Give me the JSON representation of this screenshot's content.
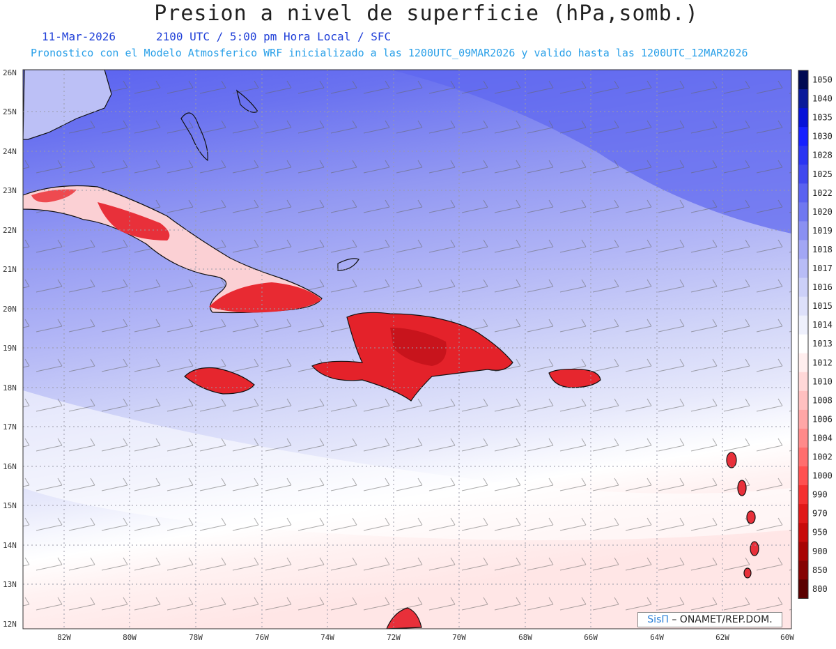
{
  "header": {
    "title": "Presion a nivel de superficie (hPa,somb.)",
    "date": "11-Mar-2026",
    "valid": "2100 UTC / 5:00 pm Hora Local / SFC",
    "subtitle": "Pronostico con el Modelo Atmosferico WRF inicializado a las 1200UTC_09MAR2026 y valido hasta las  1200UTC_12MAR2026"
  },
  "map": {
    "lat_labels": [
      "26N",
      "25N",
      "24N",
      "23N",
      "22N",
      "21N",
      "20N",
      "19N",
      "18N",
      "17N",
      "16N",
      "15N",
      "14N",
      "13N",
      "12N"
    ],
    "lon_labels": [
      "82W",
      "80W",
      "78W",
      "76W",
      "74W",
      "72W",
      "70W",
      "68W",
      "66W",
      "64W",
      "62W",
      "60W"
    ],
    "extent": {
      "lon_min": -83.2,
      "lon_max": -60,
      "lat_min": 11.8,
      "lat_max": 26.0
    },
    "land_color": "#e8202a",
    "high_color": "#5a62f0"
  },
  "colorbar": {
    "labels": [
      "1050",
      "1040",
      "1035",
      "1030",
      "1028",
      "1025",
      "1022",
      "1020",
      "1019",
      "1018",
      "1017",
      "1016",
      "1015",
      "1014",
      "1013",
      "1012",
      "1010",
      "1008",
      "1006",
      "1004",
      "1002",
      "1000",
      "990",
      "970",
      "950",
      "900",
      "850",
      "800"
    ],
    "colors": [
      "#000a52",
      "#0a1a9a",
      "#0612d8",
      "#1620ff",
      "#2a34f2",
      "#4048ee",
      "#5a62f0",
      "#7078f0",
      "#8a90f2",
      "#a2a6f4",
      "#b8bcf6",
      "#ccd0f8",
      "#dde0fa",
      "#eef0fc",
      "#ffffff",
      "#ffeeee",
      "#ffd8d8",
      "#ffc0c0",
      "#ffa6a6",
      "#ff8a8a",
      "#ff6e6e",
      "#ff5050",
      "#f43030",
      "#e01818",
      "#c80a0a",
      "#a80404",
      "#860202",
      "#5a0000"
    ]
  },
  "credit": {
    "brand": "SisΠ",
    "text": "– ONAMET/REP.DOM."
  }
}
